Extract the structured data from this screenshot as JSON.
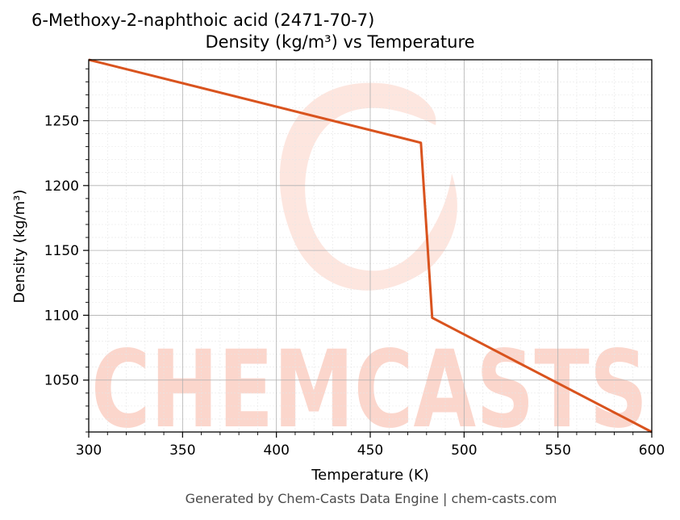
{
  "chart_data": {
    "type": "line",
    "title": "6-Methoxy-2-naphthoic acid (2471-70-7)",
    "subtitle": "Density (kg/m³) vs Temperature",
    "xlabel": "Temperature (K)",
    "ylabel": "Density (kg/m³)",
    "xlim": [
      300,
      600
    ],
    "ylim": [
      1010,
      1297
    ],
    "xticks": [
      300,
      350,
      400,
      450,
      500,
      550,
      600
    ],
    "yticks": [
      1050,
      1100,
      1150,
      1200,
      1250
    ],
    "grid": true,
    "series": [
      {
        "color": "#d9531e",
        "x": [
          300,
          477,
          483,
          600
        ],
        "y": [
          1297,
          1233,
          1098,
          1010
        ]
      }
    ]
  },
  "watermark": "CHEMCASTS",
  "watermark_color": "#fbd6cc",
  "footer": "Generated by Chem-Casts Data Engine | chem-casts.com"
}
